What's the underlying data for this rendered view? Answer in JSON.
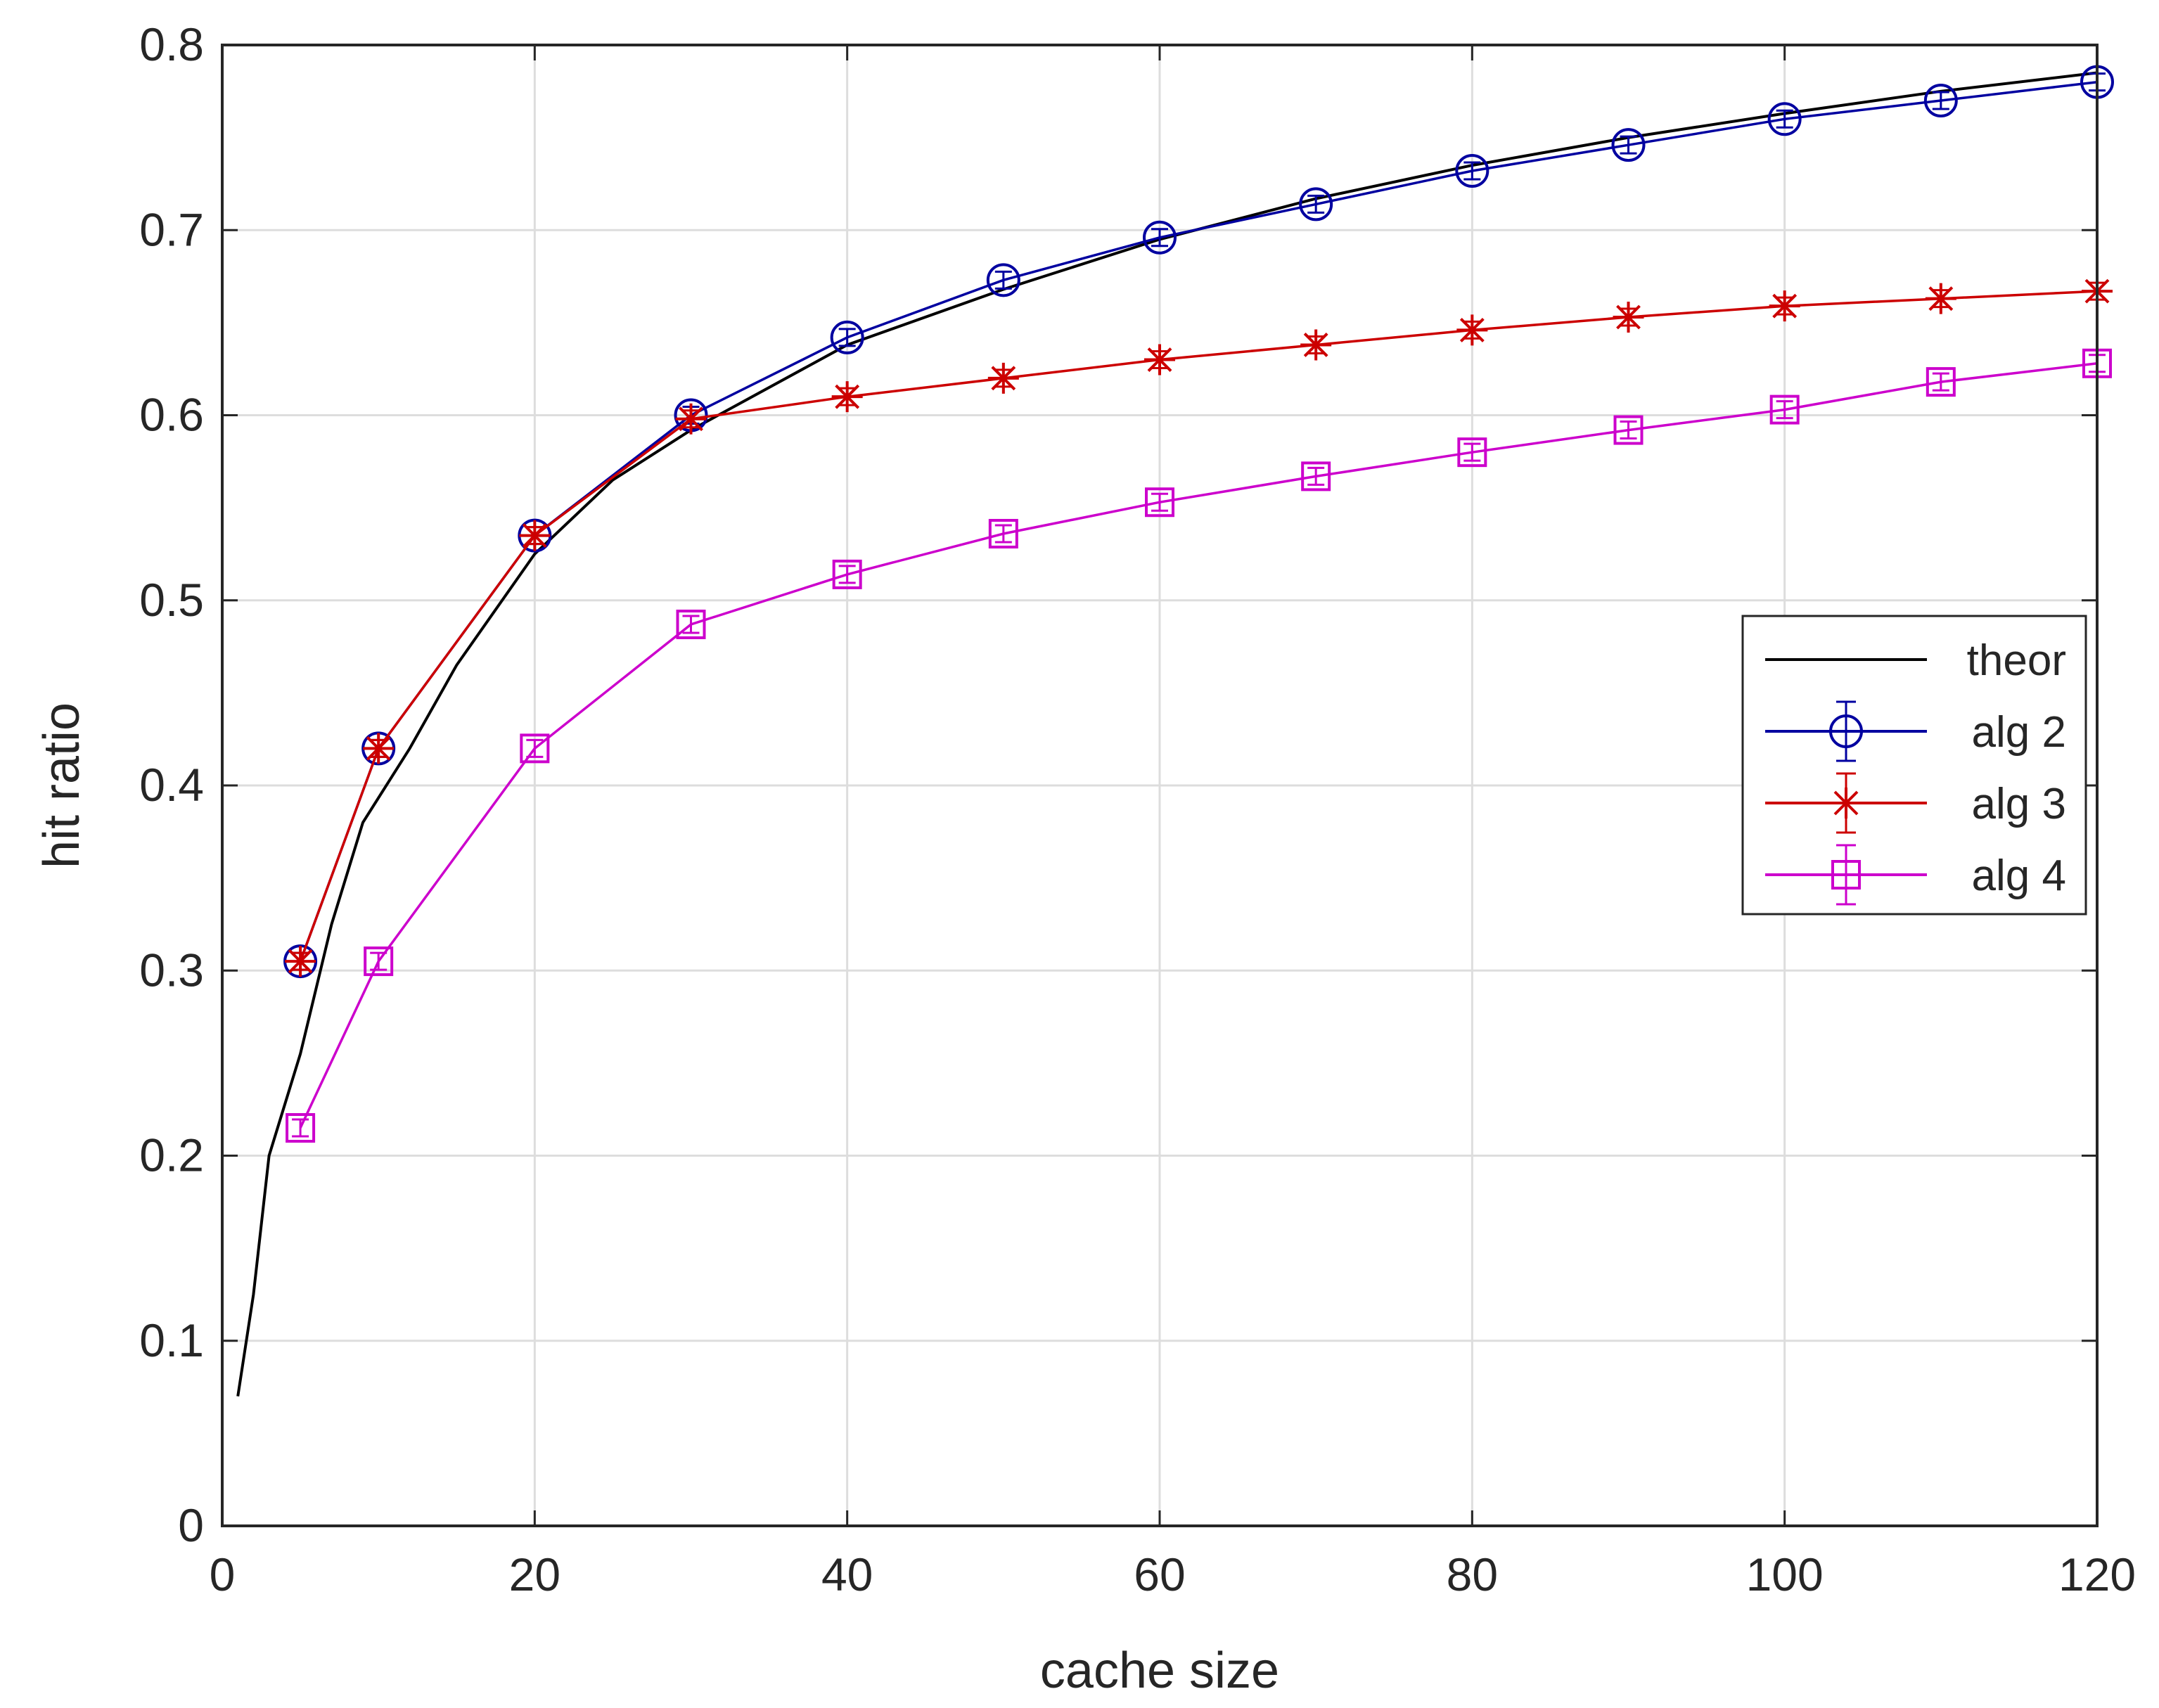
{
  "chart_data": {
    "type": "line",
    "title": "",
    "xlabel": "cache size",
    "ylabel": "hit ratio",
    "xlim": [
      0,
      120
    ],
    "ylim": [
      0,
      0.8
    ],
    "xticks": [
      0,
      20,
      40,
      60,
      80,
      100,
      120
    ],
    "yticks": [
      0,
      0.1,
      0.2,
      0.3,
      0.4,
      0.5,
      0.6,
      0.7,
      0.8
    ],
    "xtick_labels": [
      "0",
      "20",
      "40",
      "60",
      "80",
      "100",
      "120"
    ],
    "ytick_labels": [
      "0",
      "0.1",
      "0.2",
      "0.3",
      "0.4",
      "0.5",
      "0.6",
      "0.7",
      "0.8"
    ],
    "grid": true,
    "legend_position": "right",
    "series": [
      {
        "name": "theor",
        "color": "#000000",
        "marker": "none",
        "x": [
          1,
          2,
          3,
          5,
          7,
          9,
          12,
          15,
          20,
          25,
          30,
          40,
          50,
          60,
          70,
          80,
          90,
          100,
          110,
          120
        ],
        "y": [
          0.07,
          0.125,
          0.2,
          0.255,
          0.325,
          0.38,
          0.42,
          0.465,
          0.525,
          0.565,
          0.592,
          0.638,
          0.668,
          0.695,
          0.717,
          0.735,
          0.75,
          0.763,
          0.775,
          0.785
        ]
      },
      {
        "name": "alg 2",
        "color": "#0000a0",
        "marker": "circle",
        "x": [
          5,
          10,
          20,
          30,
          40,
          50,
          60,
          70,
          80,
          90,
          100,
          110,
          120
        ],
        "y": [
          0.305,
          0.42,
          0.535,
          0.6,
          0.642,
          0.673,
          0.696,
          0.714,
          0.732,
          0.746,
          0.76,
          0.77,
          0.78
        ]
      },
      {
        "name": "alg 3",
        "color": "#cc0000",
        "marker": "asterisk",
        "x": [
          5,
          10,
          20,
          30,
          40,
          50,
          60,
          70,
          80,
          90,
          100,
          110,
          120
        ],
        "y": [
          0.305,
          0.42,
          0.535,
          0.598,
          0.61,
          0.62,
          0.63,
          0.638,
          0.646,
          0.653,
          0.659,
          0.663,
          0.667
        ]
      },
      {
        "name": "alg 4",
        "color": "#cc00cc",
        "marker": "square",
        "x": [
          5,
          10,
          20,
          30,
          40,
          50,
          60,
          70,
          80,
          90,
          100,
          110,
          120
        ],
        "y": [
          0.215,
          0.305,
          0.42,
          0.487,
          0.514,
          0.536,
          0.553,
          0.567,
          0.58,
          0.592,
          0.603,
          0.618,
          0.628
        ]
      }
    ]
  }
}
